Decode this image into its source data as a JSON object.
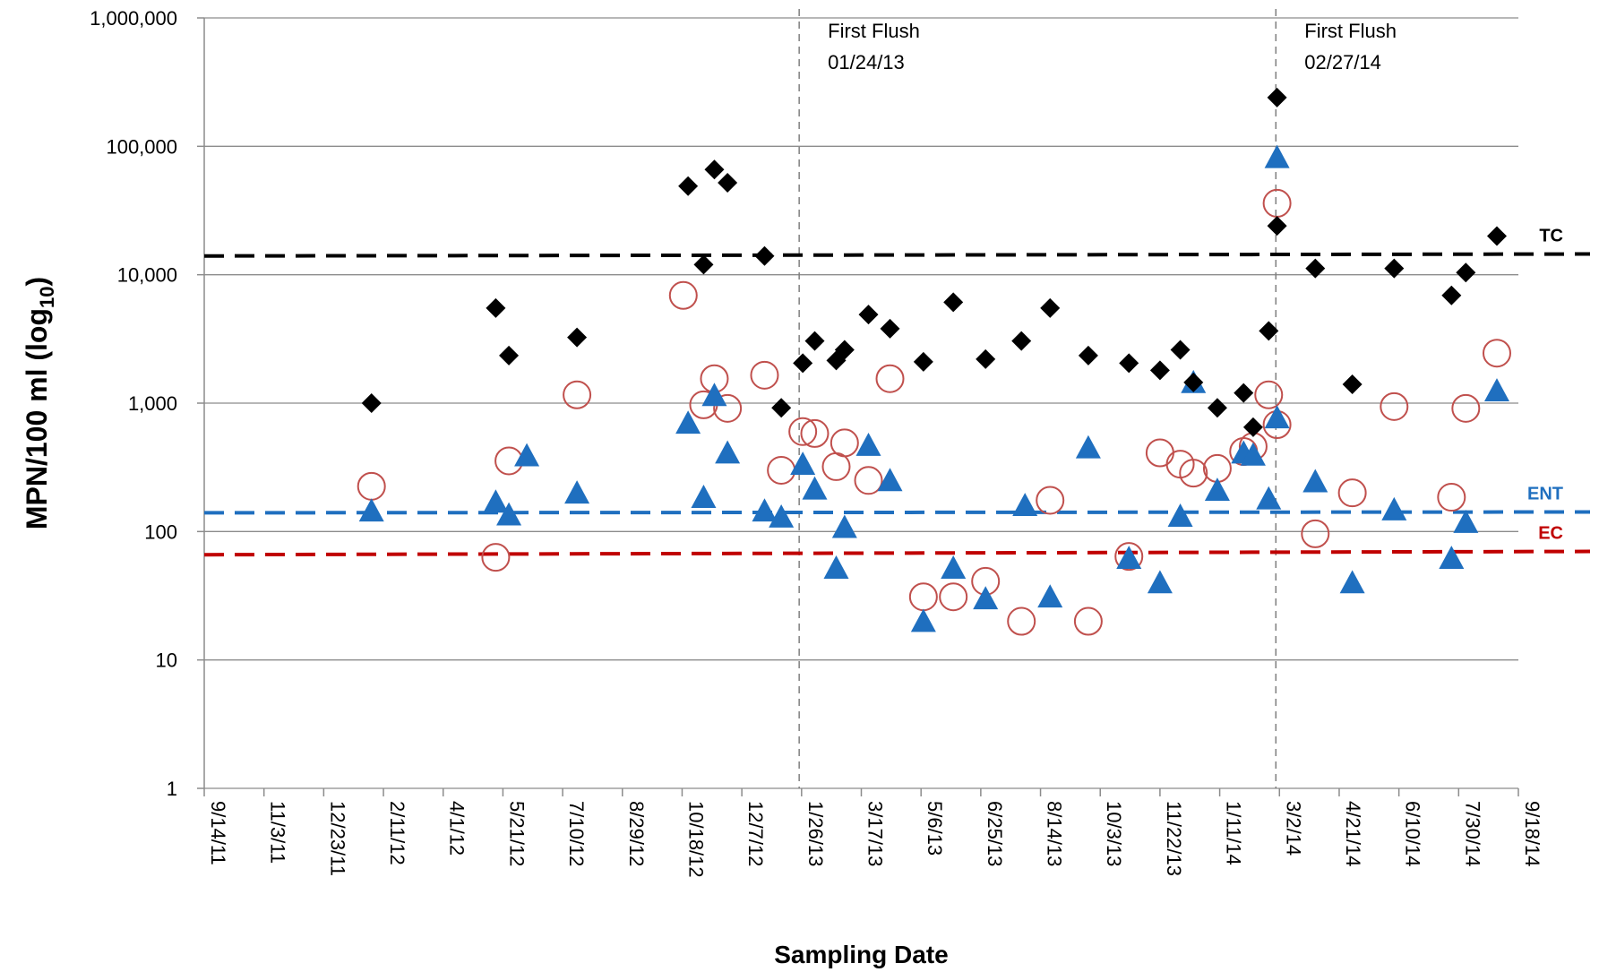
{
  "chart_data": {
    "type": "scatter",
    "xlabel": "Sampling Date",
    "ylabel": "MPN/100 ml (log",
    "ylabel_sub": "10",
    "ylabel_end": ")",
    "y_scale": "log",
    "ylim": [
      1,
      1000000
    ],
    "y_ticks": [
      {
        "value": 1,
        "label": "1"
      },
      {
        "value": 10,
        "label": "10"
      },
      {
        "value": 100,
        "label": "100"
      },
      {
        "value": 1000,
        "label": "1,000"
      },
      {
        "value": 10000,
        "label": "10,000"
      },
      {
        "value": 100000,
        "label": "100,000"
      },
      {
        "value": 1000000,
        "label": "1,000,000"
      }
    ],
    "xlim": [
      "2011-09-14",
      "2014-09-18"
    ],
    "x_ticks": [
      {
        "date": "2011-09-14",
        "label": "9/14/11"
      },
      {
        "date": "2011-11-03",
        "label": "11/3/11"
      },
      {
        "date": "2011-12-23",
        "label": "12/23/11"
      },
      {
        "date": "2012-02-11",
        "label": "2/11/12"
      },
      {
        "date": "2012-04-01",
        "label": "4/1/12"
      },
      {
        "date": "2012-05-21",
        "label": "5/21/12"
      },
      {
        "date": "2012-07-10",
        "label": "7/10/12"
      },
      {
        "date": "2012-08-29",
        "label": "8/29/12"
      },
      {
        "date": "2012-10-18",
        "label": "10/18/12"
      },
      {
        "date": "2012-12-07",
        "label": "12/7/12"
      },
      {
        "date": "2013-01-26",
        "label": "1/26/13"
      },
      {
        "date": "2013-03-17",
        "label": "3/17/13"
      },
      {
        "date": "2013-05-06",
        "label": "5/6/13"
      },
      {
        "date": "2013-06-25",
        "label": "6/25/13"
      },
      {
        "date": "2013-08-14",
        "label": "8/14/13"
      },
      {
        "date": "2013-10-03",
        "label": "10/3/13"
      },
      {
        "date": "2013-11-22",
        "label": "11/22/13"
      },
      {
        "date": "2014-01-11",
        "label": "1/11/14"
      },
      {
        "date": "2014-03-02",
        "label": "3/2/14"
      },
      {
        "date": "2014-04-21",
        "label": "4/21/14"
      },
      {
        "date": "2014-06-10",
        "label": "6/10/14"
      },
      {
        "date": "2014-07-30",
        "label": "7/30/14"
      },
      {
        "date": "2014-09-18",
        "label": "9/18/14"
      }
    ],
    "grid": "horizontal",
    "vertical_lines": [
      {
        "date": "2013-01-24",
        "line1": "First Flush",
        "line2": "01/24/13"
      },
      {
        "date": "2014-02-27",
        "line1": "First Flush",
        "line2": "02/27/14"
      }
    ],
    "reference_lines": [
      {
        "label": "TC",
        "value_start": 14000,
        "value_end": 14500,
        "color": "#000000"
      },
      {
        "label": "ENT",
        "value_start": 140,
        "value_end": 142,
        "color": "#1f6fbf"
      },
      {
        "label": "EC",
        "value_start": 66,
        "value_end": 70,
        "color": "#c00000"
      }
    ],
    "series": [
      {
        "marker": "diamond",
        "color": "#000000",
        "points": [
          {
            "x": "2012-02-01",
            "y": 1000
          },
          {
            "x": "2012-05-15",
            "y": 5500
          },
          {
            "x": "2012-05-26",
            "y": 2350
          },
          {
            "x": "2012-07-22",
            "y": 3250
          },
          {
            "x": "2012-10-23",
            "y": 49000
          },
          {
            "x": "2012-11-05",
            "y": 12000
          },
          {
            "x": "2012-11-14",
            "y": 66000
          },
          {
            "x": "2012-11-25",
            "y": 52000
          },
          {
            "x": "2012-12-26",
            "y": 14000
          },
          {
            "x": "2013-01-09",
            "y": 920
          },
          {
            "x": "2013-01-27",
            "y": 2050
          },
          {
            "x": "2013-02-06",
            "y": 3050
          },
          {
            "x": "2013-02-24",
            "y": 2150
          },
          {
            "x": "2013-03-03",
            "y": 2600
          },
          {
            "x": "2013-03-23",
            "y": 4900
          },
          {
            "x": "2013-04-10",
            "y": 3800
          },
          {
            "x": "2013-05-08",
            "y": 2100
          },
          {
            "x": "2013-06-02",
            "y": 6100
          },
          {
            "x": "2013-06-29",
            "y": 2200
          },
          {
            "x": "2013-07-29",
            "y": 3050
          },
          {
            "x": "2013-08-22",
            "y": 5500
          },
          {
            "x": "2013-09-23",
            "y": 2350
          },
          {
            "x": "2013-10-27",
            "y": 2050
          },
          {
            "x": "2013-11-22",
            "y": 1800
          },
          {
            "x": "2013-12-09",
            "y": 2600
          },
          {
            "x": "2013-12-20",
            "y": 1450
          },
          {
            "x": "2014-01-09",
            "y": 920
          },
          {
            "x": "2014-01-31",
            "y": 1200
          },
          {
            "x": "2014-02-08",
            "y": 650
          },
          {
            "x": "2014-02-21",
            "y": 3650
          },
          {
            "x": "2014-02-28",
            "y": 24000
          },
          {
            "x": "2014-02-28",
            "y": 240000
          },
          {
            "x": "2014-04-01",
            "y": 11200
          },
          {
            "x": "2014-05-02",
            "y": 1400
          },
          {
            "x": "2014-06-06",
            "y": 11200
          },
          {
            "x": "2014-07-24",
            "y": 6900
          },
          {
            "x": "2014-08-05",
            "y": 10400
          },
          {
            "x": "2014-08-31",
            "y": 20000
          }
        ]
      },
      {
        "marker": "triangle",
        "color": "#1f6fbf",
        "points": [
          {
            "x": "2012-02-01",
            "y": 145
          },
          {
            "x": "2012-05-15",
            "y": 170
          },
          {
            "x": "2012-05-26",
            "y": 135
          },
          {
            "x": "2012-06-10",
            "y": 390
          },
          {
            "x": "2012-07-22",
            "y": 200
          },
          {
            "x": "2012-10-23",
            "y": 700
          },
          {
            "x": "2012-11-05",
            "y": 185
          },
          {
            "x": "2012-11-14",
            "y": 1150
          },
          {
            "x": "2012-11-25",
            "y": 410
          },
          {
            "x": "2012-12-26",
            "y": 145
          },
          {
            "x": "2013-01-09",
            "y": 130
          },
          {
            "x": "2013-01-27",
            "y": 335
          },
          {
            "x": "2013-02-06",
            "y": 215
          },
          {
            "x": "2013-02-24",
            "y": 52
          },
          {
            "x": "2013-03-03",
            "y": 108
          },
          {
            "x": "2013-03-23",
            "y": 470
          },
          {
            "x": "2013-04-10",
            "y": 250
          },
          {
            "x": "2013-05-08",
            "y": 20
          },
          {
            "x": "2013-06-02",
            "y": 52
          },
          {
            "x": "2013-06-29",
            "y": 30
          },
          {
            "x": "2013-08-01",
            "y": 160
          },
          {
            "x": "2013-08-22",
            "y": 31
          },
          {
            "x": "2013-09-23",
            "y": 450
          },
          {
            "x": "2013-10-27",
            "y": 62
          },
          {
            "x": "2013-11-22",
            "y": 40
          },
          {
            "x": "2013-12-09",
            "y": 132
          },
          {
            "x": "2013-12-20",
            "y": 1450
          },
          {
            "x": "2014-01-09",
            "y": 210
          },
          {
            "x": "2014-01-31",
            "y": 410
          },
          {
            "x": "2014-02-08",
            "y": 395
          },
          {
            "x": "2014-02-21",
            "y": 180
          },
          {
            "x": "2014-02-28",
            "y": 770
          },
          {
            "x": "2014-02-28",
            "y": 82000
          },
          {
            "x": "2014-04-01",
            "y": 245
          },
          {
            "x": "2014-05-02",
            "y": 40
          },
          {
            "x": "2014-06-06",
            "y": 148
          },
          {
            "x": "2014-07-24",
            "y": 62
          },
          {
            "x": "2014-08-05",
            "y": 118
          },
          {
            "x": "2014-08-31",
            "y": 1250
          }
        ]
      },
      {
        "marker": "open-circle",
        "color": "#c0504d",
        "points": [
          {
            "x": "2012-02-01",
            "y": 225
          },
          {
            "x": "2012-05-15",
            "y": 63
          },
          {
            "x": "2012-05-26",
            "y": 355
          },
          {
            "x": "2012-07-22",
            "y": 1160
          },
          {
            "x": "2012-10-19",
            "y": 6900
          },
          {
            "x": "2012-11-05",
            "y": 970
          },
          {
            "x": "2012-11-14",
            "y": 1550
          },
          {
            "x": "2012-11-25",
            "y": 910
          },
          {
            "x": "2012-12-26",
            "y": 1650
          },
          {
            "x": "2013-01-09",
            "y": 300
          },
          {
            "x": "2013-01-27",
            "y": 600
          },
          {
            "x": "2013-02-06",
            "y": 580
          },
          {
            "x": "2013-02-24",
            "y": 320
          },
          {
            "x": "2013-03-03",
            "y": 490
          },
          {
            "x": "2013-03-23",
            "y": 250
          },
          {
            "x": "2013-04-10",
            "y": 1550
          },
          {
            "x": "2013-05-08",
            "y": 31
          },
          {
            "x": "2013-06-02",
            "y": 31
          },
          {
            "x": "2013-06-29",
            "y": 41
          },
          {
            "x": "2013-07-29",
            "y": 20
          },
          {
            "x": "2013-08-22",
            "y": 175
          },
          {
            "x": "2013-09-23",
            "y": 20
          },
          {
            "x": "2013-10-27",
            "y": 64
          },
          {
            "x": "2013-11-22",
            "y": 410
          },
          {
            "x": "2013-12-09",
            "y": 335
          },
          {
            "x": "2013-12-20",
            "y": 285
          },
          {
            "x": "2014-01-09",
            "y": 310
          },
          {
            "x": "2014-01-31",
            "y": 420
          },
          {
            "x": "2014-02-08",
            "y": 460
          },
          {
            "x": "2014-02-21",
            "y": 1160
          },
          {
            "x": "2014-02-28",
            "y": 680
          },
          {
            "x": "2014-02-28",
            "y": 36000
          },
          {
            "x": "2014-04-01",
            "y": 96
          },
          {
            "x": "2014-05-02",
            "y": 200
          },
          {
            "x": "2014-06-06",
            "y": 940
          },
          {
            "x": "2014-07-24",
            "y": 185
          },
          {
            "x": "2014-08-05",
            "y": 910
          },
          {
            "x": "2014-08-31",
            "y": 2450
          }
        ]
      }
    ]
  }
}
